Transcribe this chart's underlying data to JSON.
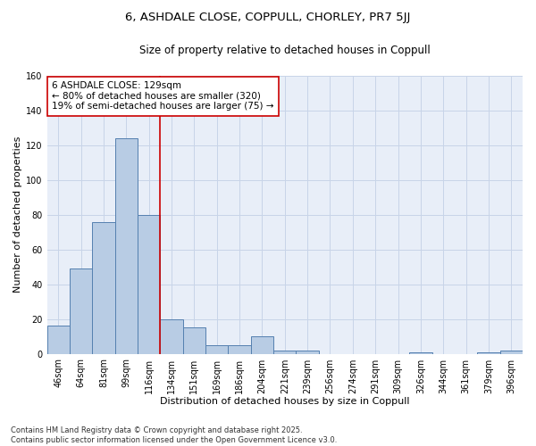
{
  "title": "6, ASHDALE CLOSE, COPPULL, CHORLEY, PR7 5JJ",
  "subtitle": "Size of property relative to detached houses in Coppull",
  "xlabel": "Distribution of detached houses by size in Coppull",
  "ylabel": "Number of detached properties",
  "categories": [
    "46sqm",
    "64sqm",
    "81sqm",
    "99sqm",
    "116sqm",
    "134sqm",
    "151sqm",
    "169sqm",
    "186sqm",
    "204sqm",
    "221sqm",
    "239sqm",
    "256sqm",
    "274sqm",
    "291sqm",
    "309sqm",
    "326sqm",
    "344sqm",
    "361sqm",
    "379sqm",
    "396sqm"
  ],
  "values": [
    16,
    49,
    76,
    124,
    80,
    20,
    15,
    5,
    5,
    10,
    2,
    2,
    0,
    0,
    0,
    0,
    1,
    0,
    0,
    1,
    2
  ],
  "bar_color": "#b8cce4",
  "bar_edge_color": "#5580b0",
  "grid_color": "#c8d4e8",
  "background_color": "#e8eef8",
  "vline_color": "#cc0000",
  "vline_pos": 4.5,
  "annotation_text": "6 ASHDALE CLOSE: 129sqm\n← 80% of detached houses are smaller (320)\n19% of semi-detached houses are larger (75) →",
  "annotation_box_color": "#ffffff",
  "annotation_box_edge_color": "#cc0000",
  "ylim": [
    0,
    160
  ],
  "yticks": [
    0,
    20,
    40,
    60,
    80,
    100,
    120,
    140,
    160
  ],
  "footnote": "Contains HM Land Registry data © Crown copyright and database right 2025.\nContains public sector information licensed under the Open Government Licence v3.0.",
  "title_fontsize": 9.5,
  "subtitle_fontsize": 8.5,
  "axis_label_fontsize": 8,
  "tick_fontsize": 7,
  "annotation_fontsize": 7.5,
  "footnote_fontsize": 6
}
